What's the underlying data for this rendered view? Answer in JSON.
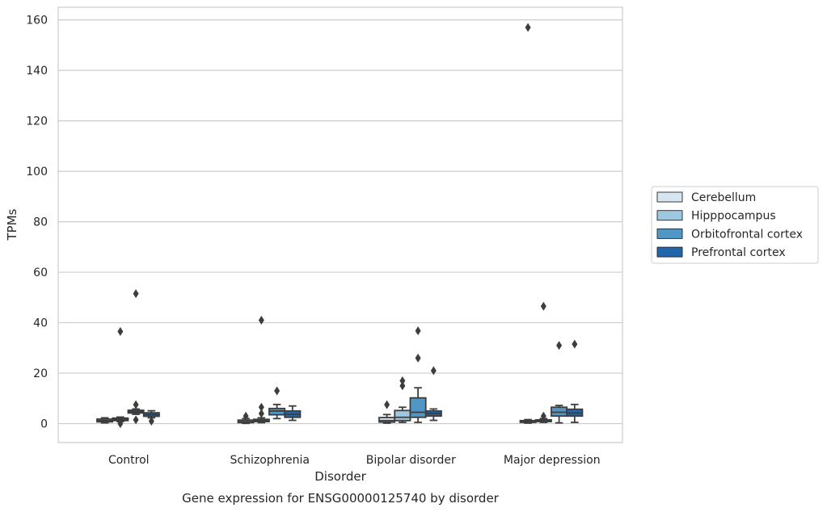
{
  "chart_data": {
    "type": "box",
    "xlabel": "Disorder",
    "ylabel": "TPMs",
    "caption": "Gene expression for ENSG00000125740 by disorder",
    "ylim": [
      -7.5,
      165
    ],
    "yticks": [
      0,
      20,
      40,
      60,
      80,
      100,
      120,
      140,
      160
    ],
    "grid": "y",
    "legend_position": "center-right",
    "categories": [
      "Control",
      "Schizophrenia",
      "Bipolar disorder",
      "Major depression"
    ],
    "series": [
      {
        "name": "Cerebellum",
        "color": "#d6e5f1",
        "boxes": [
          {
            "whislo": 0.3,
            "q1": 0.7,
            "med": 1.2,
            "q3": 1.8,
            "whishi": 2.3,
            "fliers": []
          },
          {
            "whislo": 0.1,
            "q1": 0.4,
            "med": 0.8,
            "q3": 1.4,
            "whishi": 2.0,
            "fliers": [
              3.0
            ]
          },
          {
            "whislo": 0.2,
            "q1": 0.6,
            "med": 1.2,
            "q3": 2.4,
            "whishi": 3.6,
            "fliers": [
              7.5
            ]
          },
          {
            "whislo": 0.2,
            "q1": 0.5,
            "med": 0.8,
            "q3": 1.2,
            "whishi": 1.6,
            "fliers": [
              157
            ]
          }
        ]
      },
      {
        "name": "Hipppocampus",
        "color": "#9cc8e1",
        "boxes": [
          {
            "whislo": 0.8,
            "q1": 1.2,
            "med": 1.7,
            "q3": 2.2,
            "whishi": 2.6,
            "fliers": [
              36.5,
              0.0
            ]
          },
          {
            "whislo": 0.4,
            "q1": 0.8,
            "med": 1.2,
            "q3": 1.7,
            "whishi": 2.3,
            "fliers": [
              41.0,
              6.5,
              4.0
            ]
          },
          {
            "whislo": 0.5,
            "q1": 1.2,
            "med": 2.5,
            "q3": 5.2,
            "whishi": 6.5,
            "fliers": [
              17.0,
              15.0
            ]
          },
          {
            "whislo": 0.5,
            "q1": 0.8,
            "med": 1.1,
            "q3": 1.5,
            "whishi": 2.0,
            "fliers": [
              46.5,
              3.0
            ]
          }
        ]
      },
      {
        "name": "Orbitofrontal cortex",
        "color": "#5097c6",
        "boxes": [
          {
            "whislo": 3.7,
            "q1": 4.2,
            "med": 4.8,
            "q3": 5.3,
            "whishi": 5.8,
            "fliers": [
              51.5,
              7.5,
              1.5
            ]
          },
          {
            "whislo": 2.0,
            "q1": 3.5,
            "med": 5.0,
            "q3": 6.0,
            "whishi": 7.6,
            "fliers": [
              13.0
            ]
          },
          {
            "whislo": 0.5,
            "q1": 2.5,
            "med": 4.5,
            "q3": 10.2,
            "whishi": 14.2,
            "fliers": [
              36.8,
              26.0
            ]
          },
          {
            "whislo": 0.3,
            "q1": 3.0,
            "med": 4.5,
            "q3": 6.5,
            "whishi": 7.2,
            "fliers": [
              31.0
            ]
          }
        ]
      },
      {
        "name": "Prefrontal cortex",
        "color": "#2166ac",
        "boxes": [
          {
            "whislo": 2.3,
            "q1": 2.9,
            "med": 3.6,
            "q3": 4.3,
            "whishi": 5.1,
            "fliers": [
              1.0
            ]
          },
          {
            "whislo": 1.3,
            "q1": 2.5,
            "med": 3.7,
            "q3": 5.0,
            "whishi": 7.0,
            "fliers": []
          },
          {
            "whislo": 1.3,
            "q1": 3.0,
            "med": 4.0,
            "q3": 5.0,
            "whishi": 5.8,
            "fliers": [
              21.0
            ]
          },
          {
            "whislo": 0.5,
            "q1": 3.0,
            "med": 4.2,
            "q3": 5.7,
            "whishi": 7.6,
            "fliers": [
              31.5
            ]
          }
        ]
      }
    ]
  }
}
